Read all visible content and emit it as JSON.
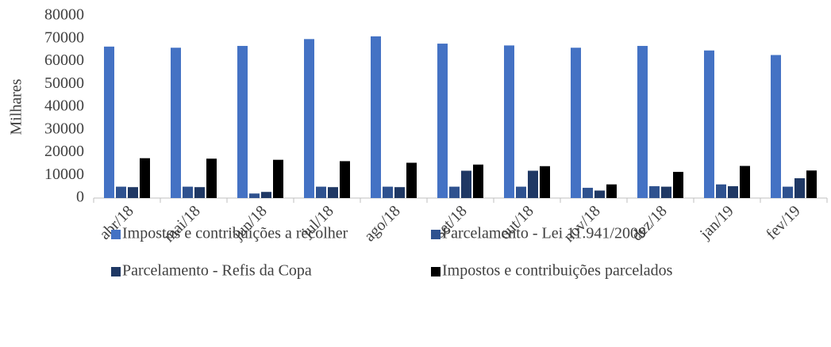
{
  "chart_data": {
    "type": "bar",
    "y_label": "Milhares",
    "categories": [
      "abr/18",
      "mai/18",
      "jun/18",
      "jul/18",
      "ago/18",
      "set/18",
      "out/18",
      "nov/18",
      "dez/18",
      "jan/19",
      "fev/19"
    ],
    "series": [
      {
        "name": "Impostos e contribuições a recolher",
        "color": "#4472c4",
        "values": [
          66500,
          66000,
          66800,
          69800,
          71000,
          67800,
          67000,
          66000,
          66800,
          64800,
          62800
        ]
      },
      {
        "name": "Parcelamento - Lei 11.941/2009",
        "color": "#2f528f",
        "values": [
          5000,
          5000,
          2000,
          5000,
          5000,
          5000,
          5000,
          4500,
          5200,
          6000,
          5000
        ]
      },
      {
        "name": "Parcelamento - Refis da Copa",
        "color": "#1f3864",
        "values": [
          4800,
          4800,
          2700,
          4800,
          4800,
          12000,
          12000,
          3300,
          5000,
          5200,
          8700
        ]
      },
      {
        "name": "Impostos e contribuições parcelados",
        "color": "#000000",
        "values": [
          17500,
          17300,
          16800,
          16200,
          15500,
          14700,
          14000,
          6000,
          11500,
          14100,
          12100
        ]
      }
    ],
    "ylim": [
      0,
      80000
    ],
    "yticks": [
      0,
      10000,
      20000,
      30000,
      40000,
      50000,
      60000,
      70000,
      80000
    ],
    "grid": false,
    "legend": "bottom"
  }
}
